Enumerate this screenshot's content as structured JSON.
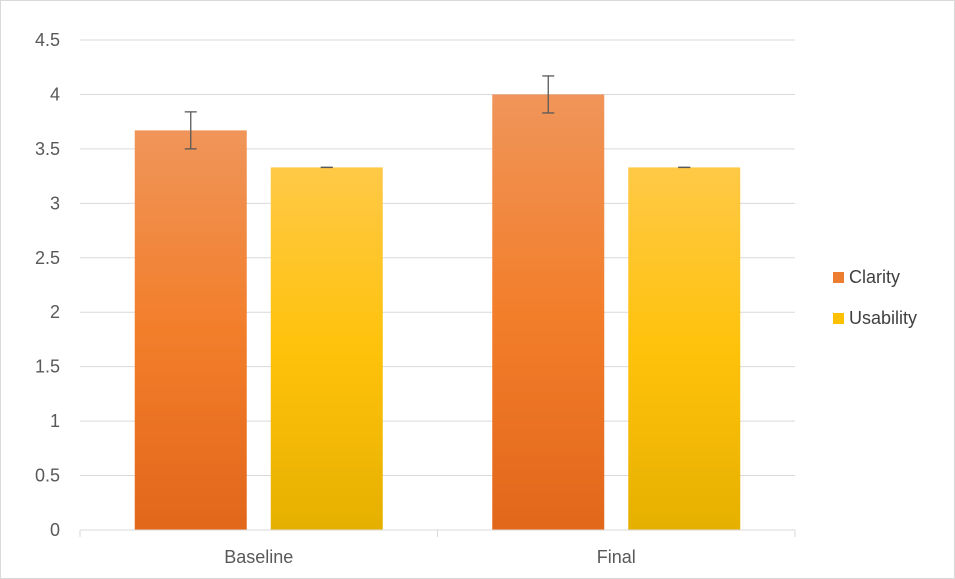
{
  "chart_data": {
    "type": "bar",
    "title": "",
    "xlabel": "",
    "ylabel": "",
    "categories": [
      "Baseline",
      "Final"
    ],
    "ylim": [
      0,
      4.5
    ],
    "yticks": [
      "0",
      "0.5",
      "1",
      "1.5",
      "2",
      "2.5",
      "3",
      "3.5",
      "4",
      "4.5"
    ],
    "grid": true,
    "legend": "right",
    "series": [
      {
        "name": "Clarity",
        "color": "#ed7d31",
        "values": [
          3.67,
          4.0
        ],
        "errors": [
          0.17,
          0.17
        ]
      },
      {
        "name": "Usability",
        "color": "#ffc000",
        "values": [
          3.33,
          3.33
        ],
        "errors": [
          0.0,
          0.0
        ]
      }
    ]
  }
}
